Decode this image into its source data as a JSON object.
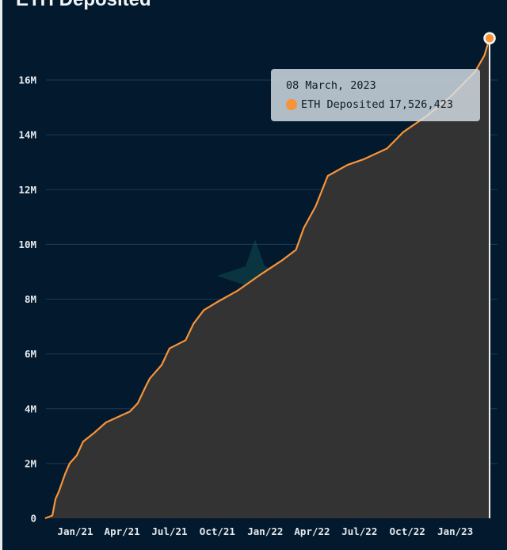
{
  "chart_data": {
    "type": "area",
    "title": "ETH Deposited",
    "xlabel": "",
    "ylabel": "",
    "ylim": [
      0,
      16000000
    ],
    "y_ticks": [
      {
        "v": 0,
        "label": "0"
      },
      {
        "v": 2000000,
        "label": "2M"
      },
      {
        "v": 4000000,
        "label": "4M"
      },
      {
        "v": 6000000,
        "label": "6M"
      },
      {
        "v": 8000000,
        "label": "8M"
      },
      {
        "v": 10000000,
        "label": "10M"
      },
      {
        "v": 12000000,
        "label": "12M"
      },
      {
        "v": 14000000,
        "label": "14M"
      },
      {
        "v": 16000000,
        "label": "16M"
      }
    ],
    "x_ticks": [
      {
        "date": "2021-01-01",
        "label": "Jan/21"
      },
      {
        "date": "2021-04-01",
        "label": "Apr/21"
      },
      {
        "date": "2021-07-01",
        "label": "Jul/21"
      },
      {
        "date": "2021-10-01",
        "label": "Oct/21"
      },
      {
        "date": "2022-01-01",
        "label": "Jan/22"
      },
      {
        "date": "2022-04-01",
        "label": "Apr/22"
      },
      {
        "date": "2022-07-01",
        "label": "Jul/22"
      },
      {
        "date": "2022-10-01",
        "label": "Oct/22"
      },
      {
        "date": "2023-01-01",
        "label": "Jan/23"
      }
    ],
    "grid": true,
    "series": [
      {
        "name": "ETH Deposited",
        "color": "#f7943a",
        "fill": "#333333",
        "points": [
          [
            "2020-11-04",
            0
          ],
          [
            "2020-11-18",
            100000
          ],
          [
            "2020-11-24",
            700000
          ],
          [
            "2020-12-01",
            1000000
          ],
          [
            "2020-12-12",
            1600000
          ],
          [
            "2020-12-21",
            2000000
          ],
          [
            "2021-01-04",
            2300000
          ],
          [
            "2021-01-16",
            2800000
          ],
          [
            "2021-02-05",
            3100000
          ],
          [
            "2021-03-01",
            3500000
          ],
          [
            "2021-03-24",
            3700000
          ],
          [
            "2021-04-16",
            3900000
          ],
          [
            "2021-05-01",
            4200000
          ],
          [
            "2021-05-16",
            4800000
          ],
          [
            "2021-05-24",
            5100000
          ],
          [
            "2021-06-16",
            5600000
          ],
          [
            "2021-07-01",
            6200000
          ],
          [
            "2021-08-01",
            6500000
          ],
          [
            "2021-08-16",
            7100000
          ],
          [
            "2021-09-05",
            7600000
          ],
          [
            "2021-10-01",
            7900000
          ],
          [
            "2021-11-08",
            8300000
          ],
          [
            "2021-12-23",
            8900000
          ],
          [
            "2022-02-01",
            9400000
          ],
          [
            "2022-03-01",
            9800000
          ],
          [
            "2022-03-16",
            10600000
          ],
          [
            "2022-04-08",
            11400000
          ],
          [
            "2022-05-01",
            12500000
          ],
          [
            "2022-06-08",
            12900000
          ],
          [
            "2022-07-08",
            13100000
          ],
          [
            "2022-08-23",
            13500000
          ],
          [
            "2022-09-23",
            14100000
          ],
          [
            "2022-11-08",
            14700000
          ],
          [
            "2022-12-23",
            15400000
          ],
          [
            "2023-02-08",
            16300000
          ],
          [
            "2023-02-26",
            16900000
          ],
          [
            "2023-03-08",
            17526423
          ]
        ]
      }
    ],
    "tooltip": {
      "date": "08 March, 2023",
      "series": "ETH Deposited",
      "value": "17,526,423"
    }
  }
}
